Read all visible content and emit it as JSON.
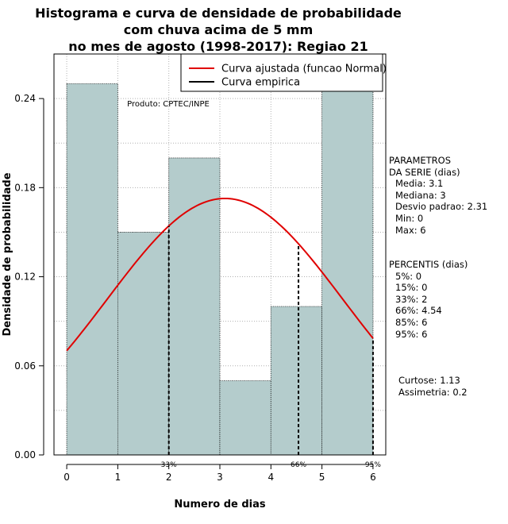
{
  "title": {
    "line1": "Histograma e curva de densidade de probabilidade",
    "line2": "com chuva acima de 5 mm",
    "line3": "no mes de agosto (1998-2017): Regiao 21"
  },
  "chart_data": {
    "type": "bar",
    "xlabel": "Numero de dias",
    "ylabel": "Densidade de probabilidade",
    "xlim": [
      -0.25,
      6.25
    ],
    "ylim": [
      0,
      0.27
    ],
    "x_ticks": [
      "0",
      "1",
      "2",
      "3",
      "4",
      "5",
      "6"
    ],
    "y_ticks": [
      "0.00",
      "0.06",
      "0.12",
      "0.18",
      "0.24"
    ],
    "bins": [
      {
        "start": 0,
        "end": 1,
        "density": 0.25
      },
      {
        "start": 1,
        "end": 2,
        "density": 0.15
      },
      {
        "start": 2,
        "end": 3,
        "density": 0.2
      },
      {
        "start": 3,
        "end": 4,
        "density": 0.05
      },
      {
        "start": 4,
        "end": 5,
        "density": 0.1
      },
      {
        "start": 5,
        "end": 6,
        "density": 0.25
      }
    ],
    "fitted_curve": {
      "mean": 3.1,
      "sd": 2.31,
      "x_range": [
        0,
        6
      ]
    },
    "percentile_markers": [
      {
        "x": 2,
        "label": "33%"
      },
      {
        "x": 4.54,
        "label": "66%"
      },
      {
        "x": 6,
        "label": "95%"
      }
    ],
    "legend": {
      "position": "top-right",
      "entries": [
        {
          "label": "Curva ajustada (funcao Normal)",
          "color": "#e00000"
        },
        {
          "label": "Curva empirica",
          "color": "#000000"
        }
      ]
    },
    "annotation": "Produto: CPTEC/INPE",
    "grid": true,
    "colors": {
      "bar_fill": "#b4cccc",
      "curve": "#e00000"
    }
  },
  "parametros": {
    "heading_line1": "PARAMETROS",
    "heading_line2": "DA SERIE (dias)",
    "items": [
      "Media: 3.1",
      "Mediana: 3",
      "Desvio padrao: 2.31",
      "Min: 0",
      "Max: 6"
    ]
  },
  "percentis": {
    "heading": "PERCENTIS (dias)",
    "items": [
      "5%: 0",
      "15%: 0",
      "33%: 2",
      "66%: 4.54",
      "85%: 6",
      "95%: 6"
    ]
  },
  "forma": {
    "curtose": "Curtose: 1.13",
    "assimetria": "Assimetria: 0.2"
  }
}
